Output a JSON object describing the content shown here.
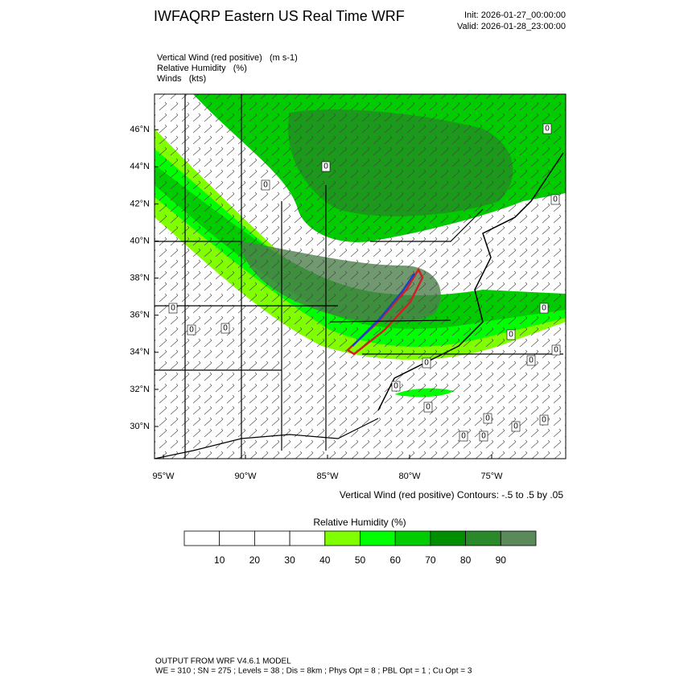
{
  "header": {
    "title": "IWFAQRP Eastern US Real Time WRF",
    "init": "Init: 2026-01-27_00:00:00",
    "valid": "Valid: 2026-01-28_23:00:00"
  },
  "fields": [
    "Vertical Wind (red positive)   (m s-1)",
    "Relative Humidity   (%)",
    "Winds   (kts)"
  ],
  "map": {
    "lat_labels": [
      "30°N",
      "32°N",
      "34°N",
      "36°N",
      "38°N",
      "40°N",
      "42°N",
      "44°N",
      "46°N"
    ],
    "lon_labels": [
      "95°W",
      "90°W",
      "85°W",
      "80°W",
      "75°W"
    ],
    "contour_label": "0",
    "contour_note": "Vertical Wind (red positive) Contours: -.5 to .5 by .05"
  },
  "colorbar": {
    "title": "Relative Humidity   (%)",
    "labels": [
      10,
      20,
      30,
      40,
      50,
      60,
      70,
      80,
      90
    ],
    "colors": [
      "#ffffff",
      "#ffffff",
      "#ffffff",
      "#ffffff",
      "#80ff00",
      "#00ff00",
      "#00cc00",
      "#008f00",
      "#2a8a2a",
      "#5a8a5a"
    ]
  },
  "footer": [
    "OUTPUT FROM WRF V4.6.1 MODEL",
    "WE = 310 ; SN = 275 ; Levels = 38 ; Dis = 8km ; Phys Opt = 8 ; PBL Opt = 1 ; Cu Opt = 3"
  ]
}
